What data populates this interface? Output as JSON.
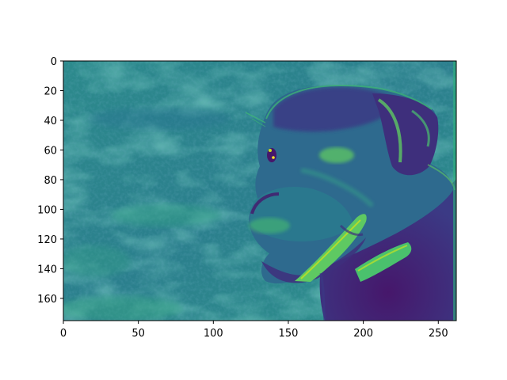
{
  "chart_data": {
    "type": "heatmap",
    "title": "",
    "xlabel": "",
    "ylabel": "",
    "colormap": "viridis",
    "image_width": 262,
    "image_height": 175,
    "xlim": [
      0,
      262
    ],
    "ylim": [
      175,
      0
    ],
    "y_axis_inverted": true,
    "grid": false,
    "colorbar": false,
    "x_ticks": [
      0,
      50,
      100,
      150,
      200,
      250
    ],
    "x_tick_labels": [
      "0",
      "50",
      "100",
      "150",
      "200",
      "250"
    ],
    "y_ticks": [
      0,
      20,
      40,
      60,
      80,
      100,
      120,
      140,
      160
    ],
    "y_tick_labels": [
      "0",
      "20",
      "40",
      "60",
      "80",
      "100",
      "120",
      "140",
      "160"
    ],
    "content": "filtered photograph of a dog's head in profile, rendered in a viridis colormap",
    "palette": {
      "background_mid": "#2b7f8d",
      "background_light": "#31988a",
      "background_dark": "#2a6e8e",
      "edge_bright": "#5ec962",
      "edge_yellow": "#c5e021",
      "fur_dark": "#3e2f7c",
      "fur_deep": "#46176b",
      "fur_mid": "#2f5d8e"
    }
  }
}
